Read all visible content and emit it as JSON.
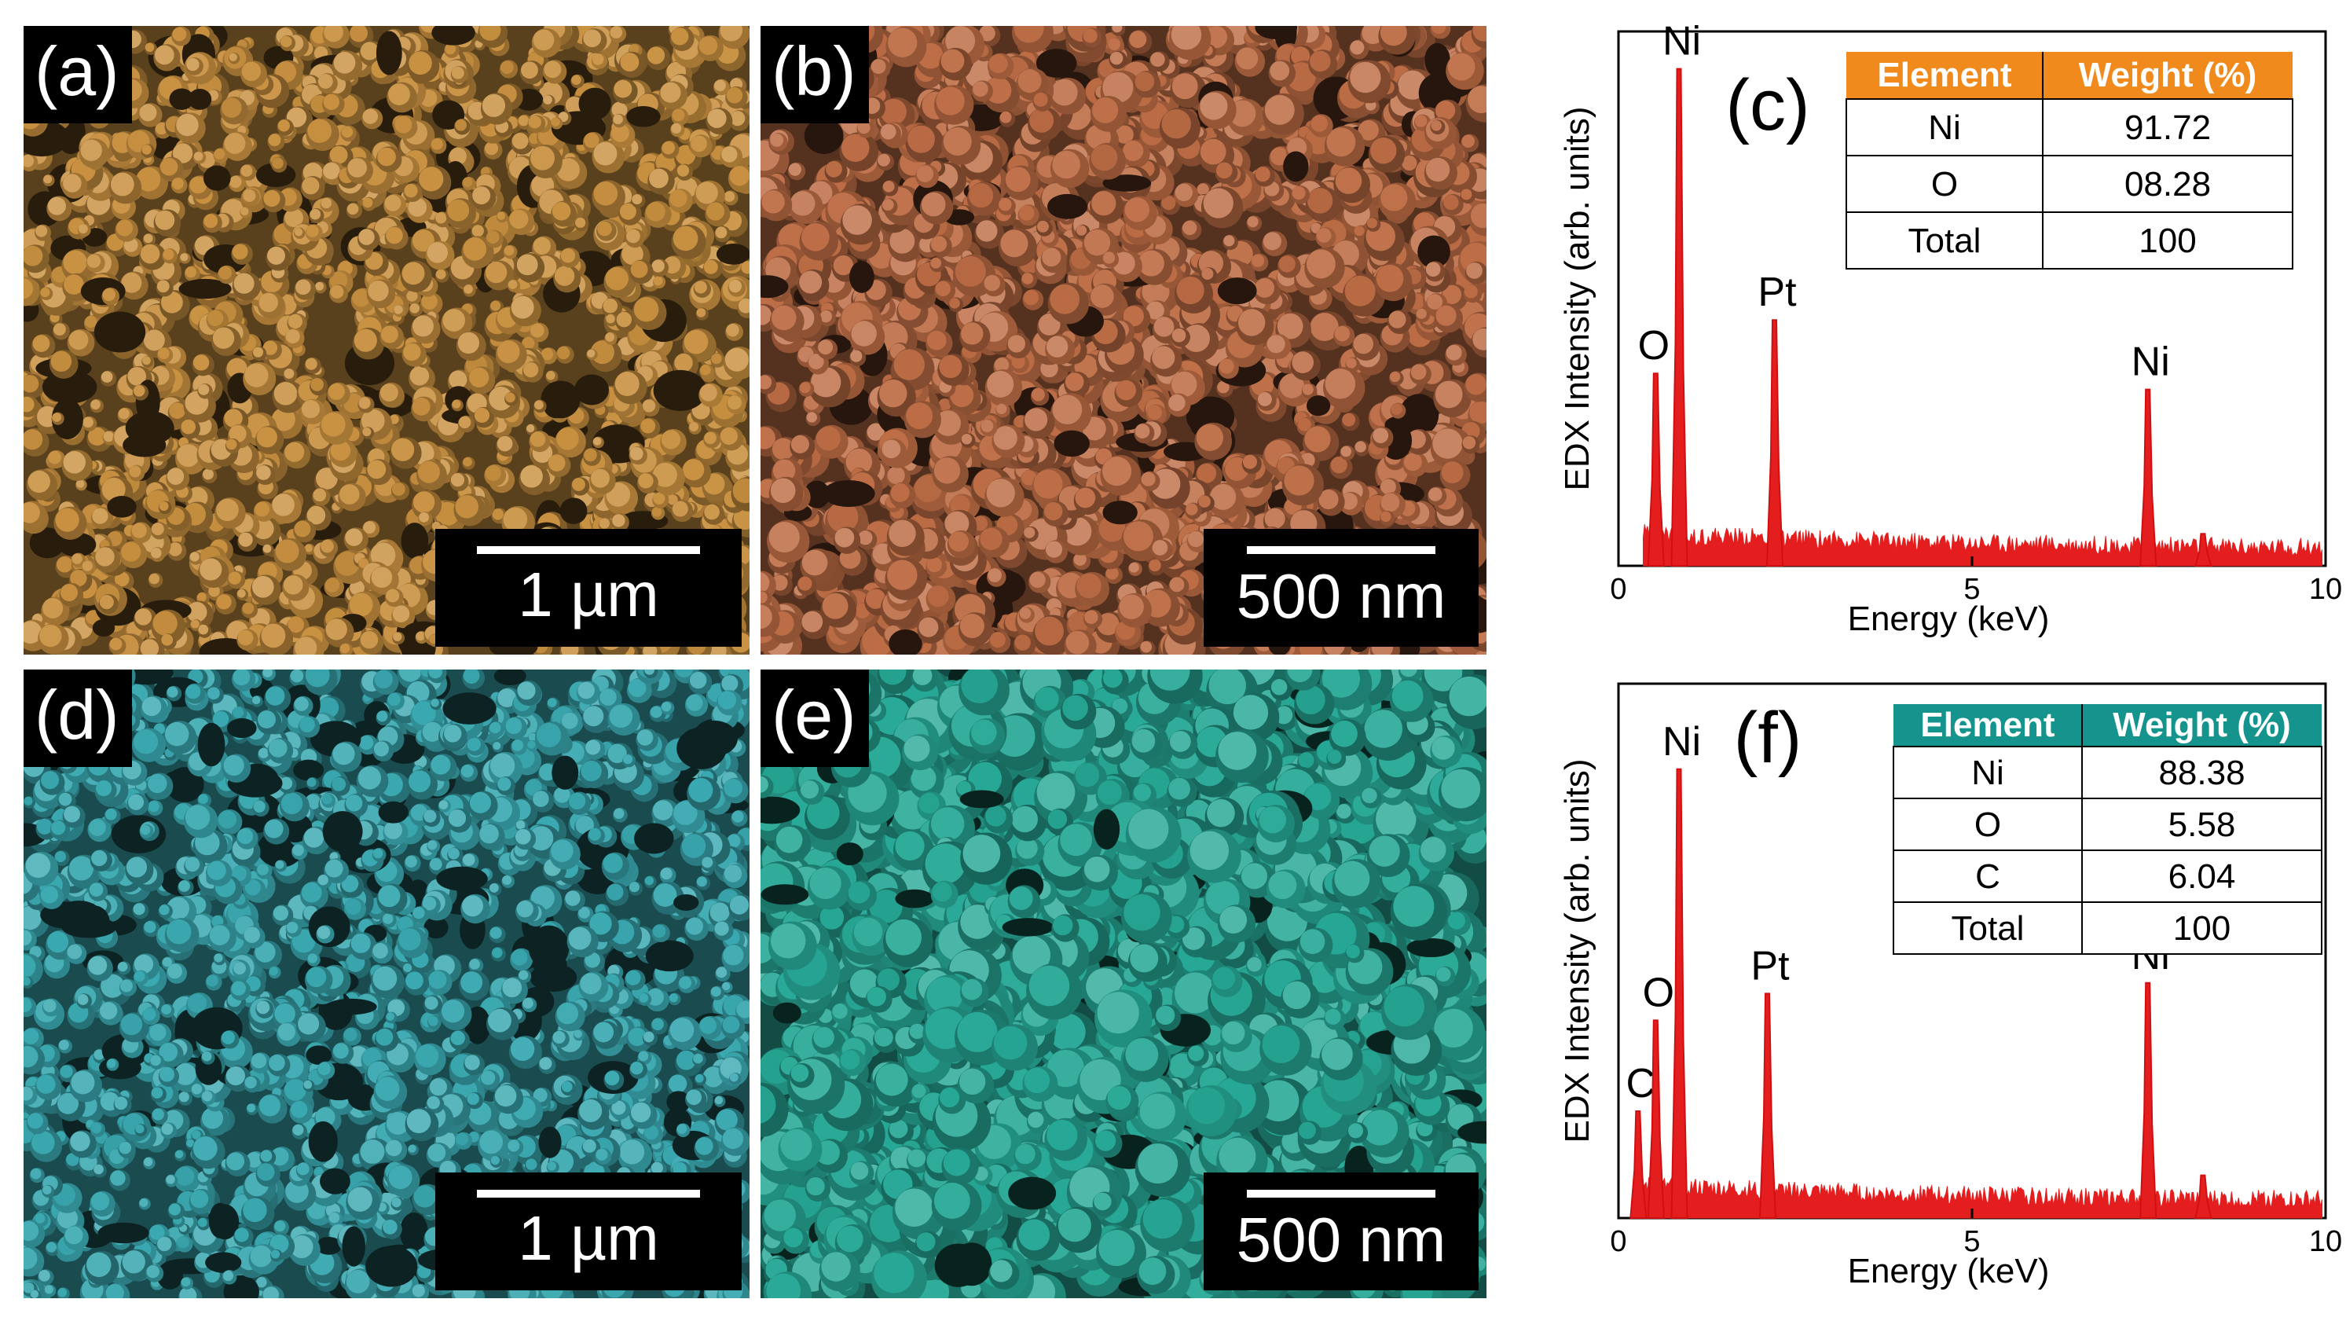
{
  "figure": {
    "panels": [
      {
        "label": "(a)",
        "scale_bar": "1 µm",
        "tint": "#c89040"
      },
      {
        "label": "(b)",
        "scale_bar": "500 nm",
        "tint": "#bd6d45"
      },
      {
        "label": "(d)",
        "scale_bar": "1 µm",
        "tint": "#3aa8b0"
      },
      {
        "label": "(e)",
        "scale_bar": "500 nm",
        "tint": "#27a896"
      }
    ]
  },
  "chart_data": [
    {
      "type": "bar",
      "panel_label": "(c)",
      "title": "",
      "xlabel": "Energy (keV)",
      "ylabel": "EDX Intensity (arb. units)",
      "xlim": [
        0,
        10
      ],
      "ylim": [
        0,
        1
      ],
      "xticks": [
        "0",
        "5",
        "10"
      ],
      "peaks": [
        {
          "element": "O",
          "x": 0.52,
          "y": 0.36
        },
        {
          "element": "Ni",
          "x": 0.85,
          "y": 0.93
        },
        {
          "element": "Pt",
          "x": 2.2,
          "y": 0.46
        },
        {
          "element": "Ni",
          "x": 7.48,
          "y": 0.33
        },
        {
          "element": "",
          "x": 8.26,
          "y": 0.06
        }
      ],
      "table": {
        "headers": [
          "Element",
          "Weight (%)"
        ],
        "rows": [
          [
            "Ni",
            "91.72"
          ],
          [
            "O",
            "08.28"
          ],
          [
            "Total",
            "100"
          ]
        ],
        "header_color": "#f08a1c"
      }
    },
    {
      "type": "bar",
      "panel_label": "(f)",
      "title": "",
      "xlabel": "Energy (keV)",
      "ylabel": "EDX Intensity (arb. units)",
      "xlim": [
        0,
        10
      ],
      "ylim": [
        0,
        1
      ],
      "xticks": [
        "0",
        "5",
        "10"
      ],
      "peaks": [
        {
          "element": "C",
          "x": 0.27,
          "y": 0.2
        },
        {
          "element": "O",
          "x": 0.52,
          "y": 0.37
        },
        {
          "element": "Ni",
          "x": 0.85,
          "y": 0.84
        },
        {
          "element": "Pt",
          "x": 2.1,
          "y": 0.42
        },
        {
          "element": "Ni",
          "x": 7.48,
          "y": 0.44
        },
        {
          "element": "",
          "x": 8.26,
          "y": 0.08
        }
      ],
      "table": {
        "headers": [
          "Element",
          "Weight (%)"
        ],
        "rows": [
          [
            "Ni",
            "88.38"
          ],
          [
            "O",
            "5.58"
          ],
          [
            "C",
            "6.04"
          ],
          [
            "Total",
            "100"
          ]
        ],
        "header_color": "#14948c"
      }
    }
  ]
}
